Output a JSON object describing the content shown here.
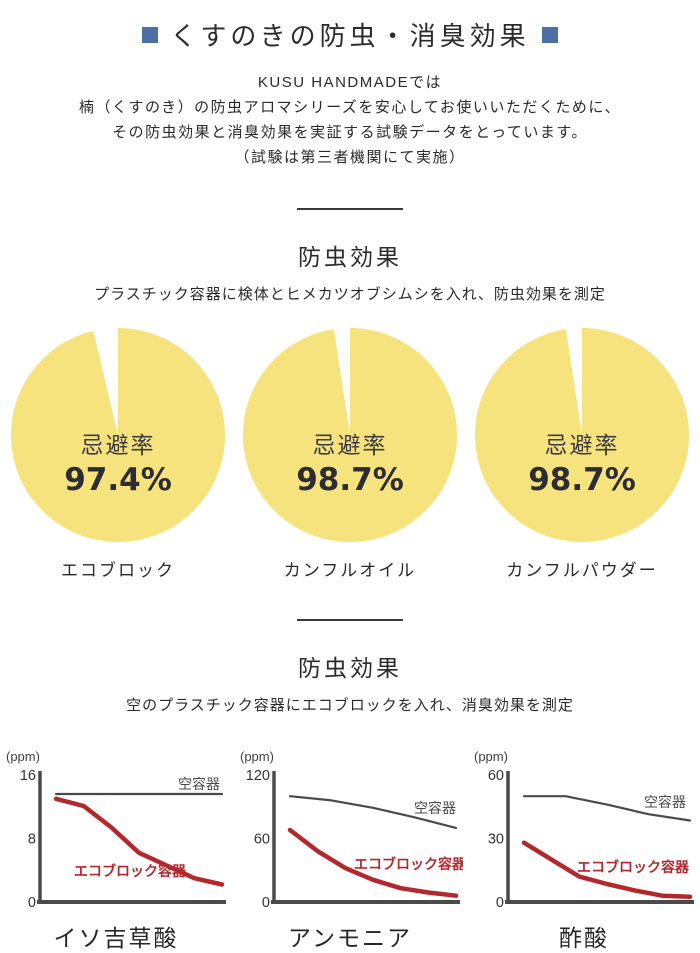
{
  "page": {
    "title": "くすのきの防虫・消臭効果",
    "accent_color": "#4e6fa4",
    "intro_lines": [
      "KUSU HANDMADEでは",
      "楠（くすのき）の防虫アロマシリーズを安心してお使いいただくために、",
      "その防虫効果と消臭効果を実証する試験データをとっています。",
      "（試験は第三者機関にて実施）"
    ]
  },
  "repellent_section": {
    "heading": "防虫効果",
    "description": "プラスチック容器に検体とヒメカツオブシムシを入れ、防虫効果を測定",
    "pie_color": "#f6e37e",
    "inner_label": "忌避率",
    "pies": [
      {
        "label": "エコブロック",
        "percent": 97.4,
        "percent_text": "97.4%"
      },
      {
        "label": "カンフルオイル",
        "percent": 98.7,
        "percent_text": "98.7%"
      },
      {
        "label": "カンフルパウダー",
        "percent": 98.7,
        "percent_text": "98.7%"
      }
    ]
  },
  "deodorant_section": {
    "heading": "防虫効果",
    "description": "空のプラスチック容器にエコブロックを入れ、消臭効果を測定"
  },
  "chart_data": [
    {
      "type": "line",
      "title": "イソ吉草酸",
      "ylabel": "(ppm)",
      "ylim": [
        0,
        16
      ],
      "yticks": [
        16,
        8,
        0
      ],
      "grid": false,
      "legend_position": "inline-annotations",
      "series": [
        {
          "name": "空容器",
          "color": "#4a4a4a",
          "values": [
            13.6,
            13.6,
            13.6,
            13.6,
            13.6,
            13.6
          ],
          "label_pos": [
            216,
            42
          ],
          "label_anchor": "end"
        },
        {
          "name": "エコブロック容器",
          "color": "#b2282d",
          "values": [
            13,
            12.1,
            9.4,
            6.2,
            4.6,
            3,
            2.2
          ],
          "label_pos": [
            126,
            129
          ],
          "label_anchor": "middle"
        }
      ]
    },
    {
      "type": "line",
      "title": "アンモニア",
      "ylabel": "(ppm)",
      "ylim": [
        0,
        120
      ],
      "yticks": [
        120,
        60,
        0
      ],
      "grid": false,
      "legend_position": "inline-annotations",
      "series": [
        {
          "name": "空容器",
          "color": "#4a4a4a",
          "values": [
            100,
            96,
            89,
            80,
            70
          ],
          "label_pos": [
            218,
            66
          ],
          "label_anchor": "end"
        },
        {
          "name": "エコブロック容器",
          "color": "#b2282d",
          "values": [
            68,
            48,
            32,
            21,
            13,
            9,
            6
          ],
          "label_pos": [
            172,
            122
          ],
          "label_anchor": "middle"
        }
      ]
    },
    {
      "type": "line",
      "title": "酢酸",
      "ylabel": "(ppm)",
      "ylim": [
        0,
        60
      ],
      "yticks": [
        60,
        30,
        0
      ],
      "grid": false,
      "legend_position": "inline-annotations",
      "series": [
        {
          "name": "空容器",
          "color": "#4a4a4a",
          "values": [
            50,
            50,
            46,
            41.5,
            38.5
          ],
          "label_pos": [
            214,
            60
          ],
          "label_anchor": "end"
        },
        {
          "name": "エコブロック容器",
          "color": "#b2282d",
          "values": [
            28,
            20,
            12,
            8.5,
            5.5,
            3,
            2.5
          ],
          "label_pos": [
            161,
            125
          ],
          "label_anchor": "middle"
        }
      ]
    }
  ]
}
